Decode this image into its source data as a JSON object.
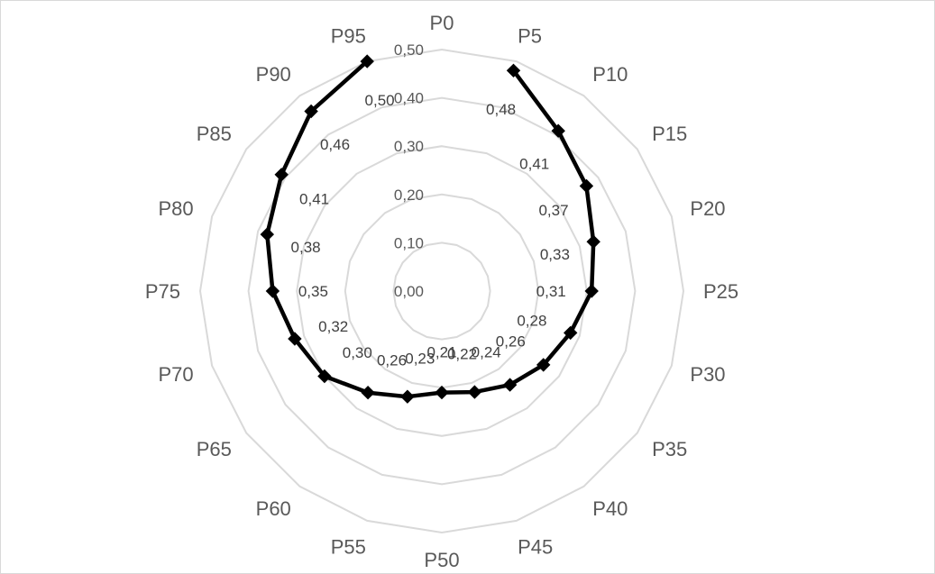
{
  "chart_data": {
    "type": "radar",
    "title": "",
    "categories": [
      "P0",
      "P5",
      "P10",
      "P15",
      "P20",
      "P25",
      "P30",
      "P35",
      "P40",
      "P45",
      "P50",
      "P55",
      "P60",
      "P65",
      "P70",
      "P75",
      "P80",
      "P85",
      "P90",
      "P95"
    ],
    "series": [
      {
        "values": [
          null,
          0.48,
          0.41,
          0.37,
          0.33,
          0.31,
          0.28,
          0.26,
          0.24,
          0.22,
          0.21,
          0.23,
          0.26,
          0.3,
          0.32,
          0.35,
          0.38,
          0.41,
          0.46,
          0.5
        ],
        "labels": [
          "",
          "0,48",
          "0,41",
          "0,37",
          "0,33",
          "0,31",
          "0,28",
          "0,26",
          "0,24",
          "0,22",
          "0,21",
          "0,23",
          "0,26",
          "0,30",
          "0,32",
          "0,35",
          "0,38",
          "0,41",
          "0,46",
          "0,50"
        ],
        "color": "#000000",
        "marker": "diamond"
      }
    ],
    "rlim": [
      0,
      0.5
    ],
    "ticks": [
      0,
      0.1,
      0.2,
      0.3,
      0.4,
      0.5
    ],
    "tick_labels": [
      "0,00",
      "0,10",
      "0,20",
      "0,30",
      "0,40",
      "0,50"
    ],
    "grid": true,
    "grid_color": "#d9d9d9",
    "legend": "none"
  }
}
